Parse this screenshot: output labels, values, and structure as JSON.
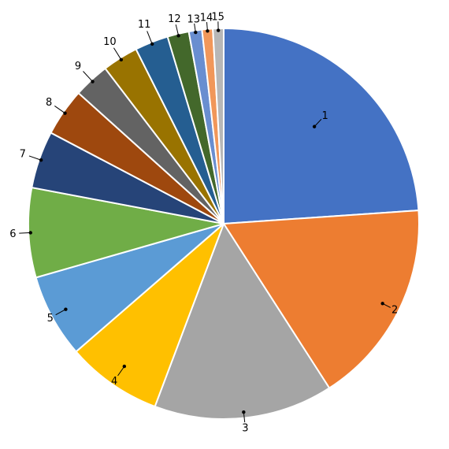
{
  "chart_data": {
    "type": "pie",
    "title": "",
    "start_angle_deg": 0,
    "direction": "clockwise",
    "slices": [
      {
        "label": "1",
        "value": 24.2,
        "color": "#4472C4"
      },
      {
        "label": "2",
        "value": 17.2,
        "color": "#ED7D31"
      },
      {
        "label": "3",
        "value": 15.0,
        "color": "#A5A5A5"
      },
      {
        "label": "4",
        "value": 8.0,
        "color": "#FFC000"
      },
      {
        "label": "5",
        "value": 7.0,
        "color": "#5B9BD5"
      },
      {
        "label": "6",
        "value": 7.5,
        "color": "#70AD47"
      },
      {
        "label": "7",
        "value": 4.8,
        "color": "#264478"
      },
      {
        "label": "8",
        "value": 4.0,
        "color": "#9E480E"
      },
      {
        "label": "9",
        "value": 3.0,
        "color": "#636363"
      },
      {
        "label": "10",
        "value": 3.0,
        "color": "#997300"
      },
      {
        "label": "11",
        "value": 2.8,
        "color": "#255E91"
      },
      {
        "label": "12",
        "value": 1.8,
        "color": "#43682B"
      },
      {
        "label": "13",
        "value": 1.1,
        "color": "#698ED0"
      },
      {
        "label": "14",
        "value": 0.9,
        "color": "#F1975A"
      },
      {
        "label": "15",
        "value": 0.9,
        "color": "#B7B7B7"
      }
    ]
  }
}
